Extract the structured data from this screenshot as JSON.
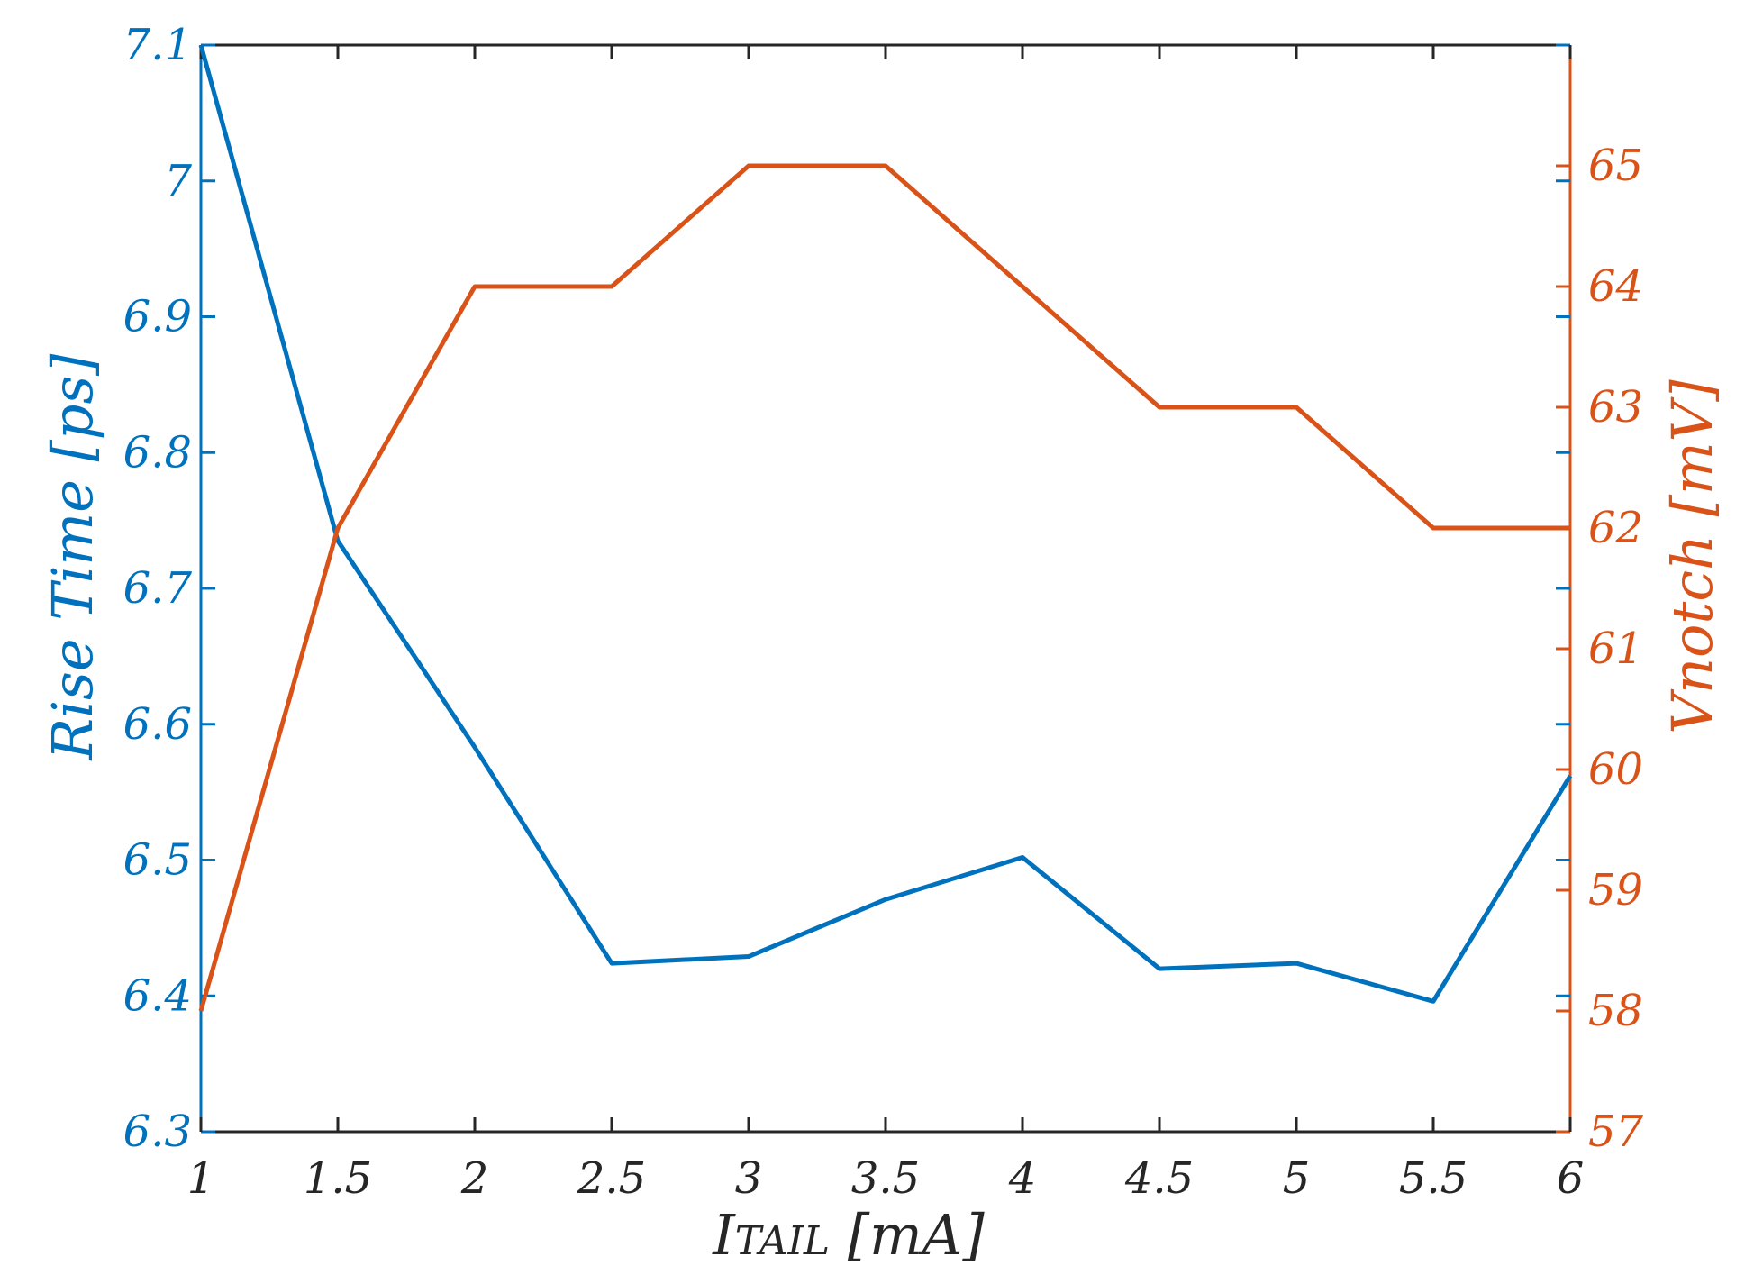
{
  "chart_data": {
    "type": "line",
    "x": [
      1,
      1.5,
      2,
      2.5,
      3,
      3.5,
      4,
      4.5,
      5,
      5.5,
      6
    ],
    "x_tick_labels": [
      "1",
      "1.5",
      "2",
      "2.5",
      "3",
      "3.5",
      "4",
      "4.5",
      "5",
      "5.5",
      "6"
    ],
    "xlim": [
      1,
      6
    ],
    "xlabel_main": "I",
    "xlabel_sub": "TAIL",
    "xlabel_unit": " [mA]",
    "left_axis": {
      "label": "Rise Time [ps]",
      "ylim": [
        6.3,
        7.1
      ],
      "ticks": [
        6.3,
        6.4,
        6.5,
        6.6,
        6.7,
        6.8,
        6.9,
        7.0,
        7.1
      ],
      "tick_labels": [
        "6.3",
        "6.4",
        "6.5",
        "6.6",
        "6.7",
        "6.8",
        "6.9",
        "7",
        "7.1"
      ],
      "color": "#0072BD"
    },
    "right_axis": {
      "label": "Vnotch [mV]",
      "ylim": [
        57,
        66
      ],
      "ticks": [
        57,
        58,
        59,
        60,
        61,
        62,
        63,
        64,
        65
      ],
      "tick_labels": [
        "57",
        "58",
        "59",
        "60",
        "61",
        "62",
        "63",
        "64",
        "65"
      ],
      "color": "#D95319"
    },
    "series": [
      {
        "axis": "left",
        "color": "#0072BD",
        "values": [
          7.1,
          6.735,
          6.583,
          6.424,
          6.429,
          6.471,
          6.502,
          6.42,
          6.424,
          6.396,
          6.562
        ]
      },
      {
        "axis": "right",
        "color": "#D95319",
        "values": [
          58,
          62,
          64,
          64,
          65,
          65,
          64,
          63,
          63,
          62,
          62
        ]
      }
    ],
    "grid": false
  }
}
